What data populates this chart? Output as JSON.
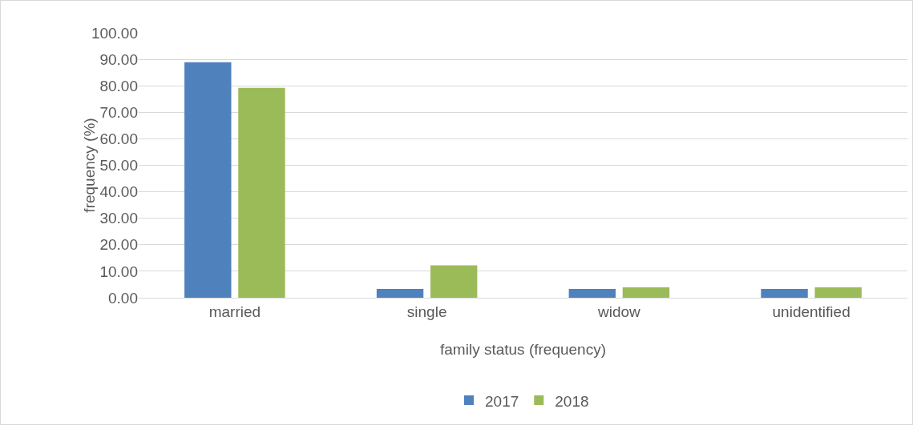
{
  "chart_data": {
    "type": "bar",
    "xlabel": "family status (frequency)",
    "ylabel": "frequency (%)",
    "categories": [
      "married",
      "single",
      "widow",
      "unidentified"
    ],
    "series": [
      {
        "name": "2017",
        "color": "#4f81bd",
        "values": [
          88.9,
          3.3,
          3.3,
          3.3
        ]
      },
      {
        "name": "2018",
        "color": "#9bbb59",
        "values": [
          79.2,
          12.2,
          3.9,
          3.9
        ]
      }
    ],
    "ylim": [
      0,
      100
    ],
    "yticks": [
      {
        "value": 0,
        "label": "0.00"
      },
      {
        "value": 10,
        "label": "10.00"
      },
      {
        "value": 20,
        "label": "20.00"
      },
      {
        "value": 30,
        "label": "30.00"
      },
      {
        "value": 40,
        "label": "40.00"
      },
      {
        "value": 50,
        "label": "50.00"
      },
      {
        "value": 60,
        "label": "60.00"
      },
      {
        "value": 70,
        "label": "70.00"
      },
      {
        "value": 80,
        "label": "80.00"
      },
      {
        "value": 90,
        "label": "90.00"
      },
      {
        "value": 100,
        "label": "100.00"
      }
    ],
    "grid": "y",
    "legend": "bottom"
  }
}
